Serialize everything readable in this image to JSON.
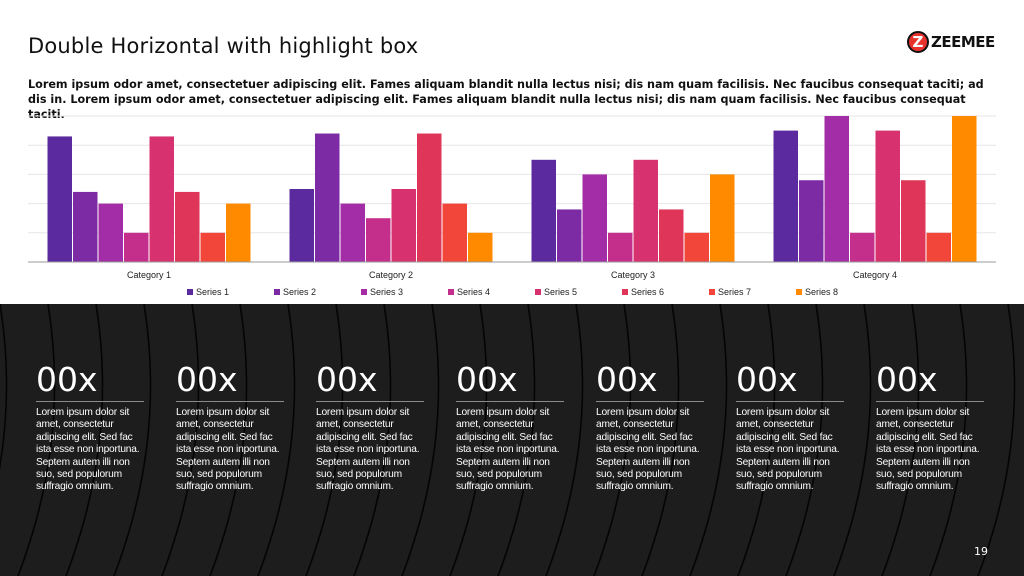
{
  "slide": {
    "title": "Double Horizontal with highlight box",
    "subtitle": "Lorem ipsum odor amet, consectetuer adipiscing elit. Fames aliquam blandit nulla lectus nisi; dis nam quam facilisis. Nec faucibus consequat taciti; ad dis in. Lorem ipsum odor amet, consectetuer adipiscing elit. Fames aliquam blandit nulla lectus nisi; dis nam quam facilisis. Nec faucibus consequat taciti.",
    "page_number": "19"
  },
  "logo": {
    "mark": "Z",
    "text": "ZEEMEE"
  },
  "chart_data": {
    "type": "bar",
    "categories": [
      "Category 1",
      "Category 2",
      "Category 3",
      "Category 4"
    ],
    "ylim": [
      0,
      5
    ],
    "grid": true,
    "legend": "bottom",
    "title": "",
    "xlabel": "",
    "ylabel": "",
    "series": [
      {
        "name": "Series 1",
        "color": "#5b2a9e",
        "values": [
          4.3,
          2.5,
          3.5,
          4.5
        ]
      },
      {
        "name": "Series 2",
        "color": "#7d2aa5",
        "values": [
          2.4,
          4.4,
          1.8,
          2.8
        ]
      },
      {
        "name": "Series 3",
        "color": "#a22da6",
        "values": [
          2.0,
          2.0,
          3.0,
          5.0
        ]
      },
      {
        "name": "Series 4",
        "color": "#c52f8c",
        "values": [
          1.0,
          1.5,
          1.0,
          1.0
        ]
      },
      {
        "name": "Series 5",
        "color": "#d7326f",
        "values": [
          4.3,
          2.5,
          3.5,
          4.5
        ]
      },
      {
        "name": "Series 6",
        "color": "#de3559",
        "values": [
          2.4,
          4.4,
          1.8,
          2.8
        ]
      },
      {
        "name": "Series 7",
        "color": "#f2463a",
        "values": [
          1.0,
          2.0,
          1.0,
          1.0
        ]
      },
      {
        "name": "Series 8",
        "color": "#ff8a00",
        "values": [
          2.0,
          1.0,
          3.0,
          5.0
        ]
      }
    ]
  },
  "stats": [
    {
      "value": "00x",
      "text": "Lorem ipsum dolor sit amet, consectetur adipiscing elit. Sed fac ista esse non inportuna. Septem autem illi non suo, sed populorum suffragio omnium."
    },
    {
      "value": "00x",
      "text": "Lorem ipsum dolor sit amet, consectetur adipiscing elit. Sed fac ista esse non inportuna. Septem autem illi non suo, sed populorum suffragio omnium."
    },
    {
      "value": "00x",
      "text": "Lorem ipsum dolor sit amet, consectetur adipiscing elit. Sed fac ista esse non inportuna. Septem autem illi non suo, sed populorum suffragio omnium."
    },
    {
      "value": "00x",
      "text": "Lorem ipsum dolor sit amet, consectetur adipiscing elit. Sed fac ista esse non inportuna. Septem autem illi non suo, sed populorum suffragio omnium."
    },
    {
      "value": "00x",
      "text": "Lorem ipsum dolor sit amet, consectetur adipiscing elit. Sed fac ista esse non inportuna. Septem autem illi non suo, sed populorum suffragio omnium."
    },
    {
      "value": "00x",
      "text": "Lorem ipsum dolor sit amet, consectetur adipiscing elit. Sed fac ista esse non inportuna. Septem autem illi non suo, sed populorum suffragio omnium."
    },
    {
      "value": "00x",
      "text": "Lorem ipsum dolor sit amet, consectetur adipiscing elit. Sed fac ista esse non inportuna. Septem autem illi non suo, sed populorum suffragio omnium."
    }
  ],
  "colors": {
    "dark_panel": "#1d1d1d",
    "grid": "#e6e6e6",
    "axis": "#9a9a9a"
  }
}
